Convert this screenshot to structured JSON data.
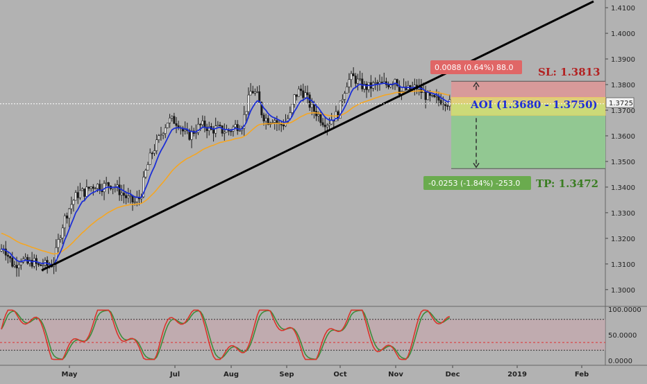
{
  "chart_data": {
    "type": "candlestick",
    "price_axis": {
      "ticks": [
        "1.4100",
        "1.4000",
        "1.3900",
        "1.3800",
        "1.3700",
        "1.3600",
        "1.3500",
        "1.3400",
        "1.3300",
        "1.3200",
        "1.3100",
        "1.3000"
      ],
      "ylim": [
        1.294,
        1.413
      ],
      "current_price": "1.3725"
    },
    "x_axis": {
      "labels": [
        "May",
        "Jul",
        "Aug",
        "Sep",
        "Oct",
        "Nov",
        "Dec",
        "2019",
        "Feb"
      ]
    },
    "price_series_path": [
      [
        0,
        1.315
      ],
      [
        5,
        1.317
      ],
      [
        12,
        1.313
      ],
      [
        20,
        1.309
      ],
      [
        30,
        1.312
      ],
      [
        40,
        1.31
      ],
      [
        48,
        1.311
      ],
      [
        55,
        1.309
      ],
      [
        62,
        1.31
      ],
      [
        70,
        1.309
      ],
      [
        78,
        1.311
      ],
      [
        85,
        1.32
      ],
      [
        92,
        1.327
      ],
      [
        100,
        1.332
      ],
      [
        108,
        1.336
      ],
      [
        115,
        1.338
      ],
      [
        122,
        1.338
      ],
      [
        130,
        1.34
      ],
      [
        138,
        1.341
      ],
      [
        146,
        1.34
      ],
      [
        154,
        1.341
      ],
      [
        162,
        1.341
      ],
      [
        170,
        1.339
      ],
      [
        178,
        1.337
      ],
      [
        186,
        1.335
      ],
      [
        194,
        1.334
      ],
      [
        202,
        1.336
      ],
      [
        210,
        1.346
      ],
      [
        218,
        1.353
      ],
      [
        226,
        1.357
      ],
      [
        234,
        1.362
      ],
      [
        242,
        1.366
      ],
      [
        250,
        1.366
      ],
      [
        258,
        1.365
      ],
      [
        265,
        1.361
      ],
      [
        272,
        1.36
      ],
      [
        280,
        1.362
      ],
      [
        288,
        1.364
      ],
      [
        296,
        1.364
      ],
      [
        304,
        1.362
      ],
      [
        312,
        1.363
      ],
      [
        320,
        1.362
      ],
      [
        330,
        1.362
      ],
      [
        340,
        1.364
      ],
      [
        348,
        1.364
      ],
      [
        356,
        1.372
      ],
      [
        362,
        1.378
      ],
      [
        370,
        1.376
      ],
      [
        378,
        1.368
      ],
      [
        386,
        1.366
      ],
      [
        394,
        1.367
      ],
      [
        402,
        1.364
      ],
      [
        410,
        1.365
      ],
      [
        418,
        1.368
      ],
      [
        424,
        1.375
      ],
      [
        432,
        1.378
      ],
      [
        440,
        1.376
      ],
      [
        448,
        1.371
      ],
      [
        456,
        1.369
      ],
      [
        464,
        1.366
      ],
      [
        472,
        1.365
      ],
      [
        480,
        1.367
      ],
      [
        488,
        1.369
      ],
      [
        494,
        1.376
      ],
      [
        500,
        1.381
      ],
      [
        508,
        1.383
      ],
      [
        516,
        1.381
      ],
      [
        524,
        1.379
      ],
      [
        532,
        1.379
      ],
      [
        540,
        1.38
      ],
      [
        548,
        1.38
      ],
      [
        556,
        1.38
      ],
      [
        564,
        1.381
      ],
      [
        570,
        1.383
      ],
      [
        576,
        1.377
      ],
      [
        584,
        1.378
      ],
      [
        592,
        1.378
      ],
      [
        600,
        1.379
      ],
      [
        608,
        1.377
      ],
      [
        616,
        1.375
      ],
      [
        624,
        1.374
      ],
      [
        632,
        1.374
      ],
      [
        640,
        1.374
      ],
      [
        648,
        1.3725
      ]
    ],
    "ma_fast_label": "",
    "ma_slow_label": "",
    "trendline": {
      "from": [
        "Apr",
        1.3075
      ],
      "to": [
        "Feb",
        1.413
      ]
    },
    "setup": {
      "stop_loss": 1.3813,
      "take_profit": 1.3472,
      "aoi_low": 1.368,
      "aoi_high": 1.375,
      "entry": 1.3725,
      "sl_label": "SL: 1.3813",
      "tp_label": "TP: 1.3472",
      "aoi_label": "AOI (1.3680 - 1.3750)",
      "risk_box_text": "0.0088 (0.64%) 88.0",
      "reward_box_text": "-0.0253 (-1.84%) -253.0"
    },
    "oscillator": {
      "ticks": [
        "100.0000",
        "50.0000",
        "0.0000"
      ],
      "ylim": [
        0,
        100
      ],
      "overbought": 80,
      "midline": 35,
      "oversold": 20
    }
  },
  "colors": {
    "background": "#b2b2b2",
    "candle": "#1a1a1a",
    "ma_fast": "#1c2fd6",
    "ma_slow": "#f5a623",
    "trendline": "#000000",
    "stop_zone": "#d89a9a",
    "target_zone": "#92c892",
    "aoi_zone": "#e0e070",
    "risk_box": "#e06666",
    "reward_box": "#6aab4e",
    "osc_fast": "#d9342b",
    "osc_slow": "#3b8c3b"
  }
}
